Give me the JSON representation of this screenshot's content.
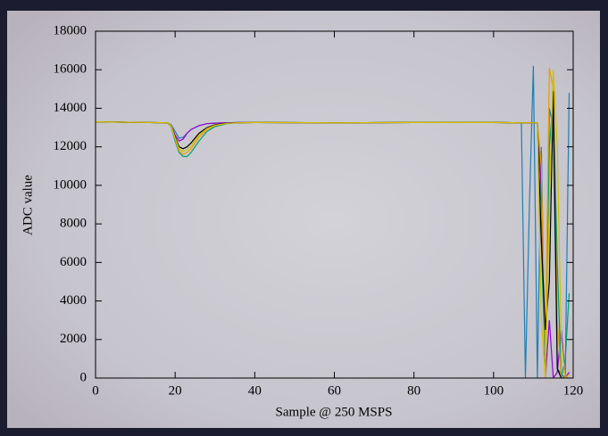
{
  "chart_data": {
    "type": "line",
    "x_label": "Sample @ 250 MSPS",
    "y_label": "ADC value",
    "x": [
      0,
      18,
      19,
      20,
      21,
      22,
      23,
      24,
      26,
      28,
      30,
      33,
      36,
      40,
      60,
      80,
      100,
      107,
      108,
      109,
      110,
      111,
      112,
      113,
      114,
      115,
      116,
      117,
      118,
      119
    ],
    "series": [
      {
        "color": "#1f7fb4",
        "values": [
          13300,
          13250,
          13150,
          12800,
          12450,
          12500,
          12700,
          12900,
          13100,
          13200,
          13230,
          13250,
          13260,
          13260,
          13250,
          13260,
          13260,
          13250,
          0,
          9000,
          16200,
          0,
          12000,
          0,
          14000,
          13000,
          500,
          200,
          0,
          14800
        ]
      },
      {
        "color": "#9400d3",
        "values": [
          13300,
          13250,
          13100,
          12600,
          12300,
          12400,
          12700,
          12900,
          13100,
          13200,
          13230,
          13250,
          13260,
          13260,
          13250,
          13260,
          13260,
          13250,
          13250,
          13250,
          13250,
          13250,
          10000,
          0,
          3000,
          0,
          300,
          2500,
          0,
          300
        ]
      },
      {
        "color": "#009e73",
        "values": [
          13300,
          13250,
          13050,
          12300,
          11700,
          11500,
          11500,
          11700,
          12300,
          12800,
          13050,
          13200,
          13250,
          13260,
          13250,
          13260,
          13260,
          13250,
          13250,
          13250,
          13250,
          13250,
          7000,
          500,
          12000,
          14500,
          6000,
          0,
          1000,
          4400
        ]
      },
      {
        "color": "#e69f00",
        "values": [
          13300,
          13250,
          13050,
          12400,
          11800,
          11600,
          11700,
          11900,
          12500,
          12900,
          13100,
          13220,
          13250,
          13260,
          13250,
          13260,
          13260,
          13250,
          13250,
          13250,
          13250,
          13250,
          11000,
          1000,
          16100,
          15000,
          3000,
          0,
          0,
          200
        ]
      },
      {
        "color": "#000000",
        "values": [
          13300,
          13250,
          13100,
          12500,
          12000,
          11900,
          12000,
          12200,
          12700,
          13000,
          13150,
          13230,
          13250,
          13260,
          13250,
          13260,
          13260,
          13250,
          13250,
          13250,
          13250,
          13250,
          7200,
          2500,
          5000,
          14900,
          500,
          0,
          0,
          0
        ]
      },
      {
        "color": "#d4c000",
        "values": [
          13300,
          13250,
          13100,
          12450,
          11900,
          11750,
          11850,
          12050,
          12600,
          12950,
          13120,
          13220,
          13250,
          13260,
          13250,
          13260,
          13260,
          13250,
          13250,
          13250,
          13250,
          13250,
          3000,
          0,
          9000,
          16000,
          12000,
          2000,
          0,
          0
        ]
      }
    ],
    "xlim": [
      0,
      120
    ],
    "xticks": [
      0,
      20,
      40,
      60,
      80,
      100,
      120
    ],
    "ylim": [
      0,
      18000
    ],
    "yticks": [
      0,
      2000,
      4000,
      6000,
      8000,
      10000,
      12000,
      14000,
      16000,
      18000
    ]
  }
}
